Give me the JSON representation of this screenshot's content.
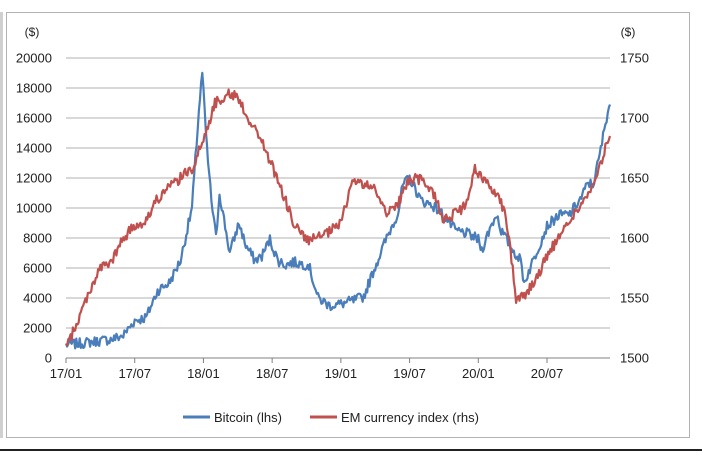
{
  "chart_data": {
    "type": "line",
    "title": "",
    "x_tick_labels": [
      "17/01",
      "17/07",
      "18/01",
      "18/07",
      "19/01",
      "19/07",
      "20/01",
      "20/07"
    ],
    "y_left": {
      "unit": "($)",
      "ylim": [
        0,
        20000
      ],
      "ticks": [
        0,
        2000,
        4000,
        6000,
        8000,
        10000,
        12000,
        14000,
        16000,
        18000,
        20000
      ]
    },
    "y_right": {
      "unit": "($)",
      "ylim": [
        1500,
        1750
      ],
      "ticks": [
        1500,
        1550,
        1600,
        1650,
        1700,
        1750
      ]
    },
    "grid": "horizontal",
    "legend_position": "bottom",
    "x_range_months": [
      0,
      47.5
    ],
    "series": [
      {
        "name": "Bitcoin (lhs)",
        "axis": "left",
        "color": "#4a7ebb",
        "points": [
          [
            0,
            900
          ],
          [
            1,
            950
          ],
          [
            2,
            1050
          ],
          [
            3,
            1150
          ],
          [
            4,
            1250
          ],
          [
            5,
            1500
          ],
          [
            6,
            2500
          ],
          [
            7,
            2700
          ],
          [
            8,
            4500
          ],
          [
            9,
            5000
          ],
          [
            10,
            6500
          ],
          [
            11,
            10000
          ],
          [
            11.6,
            16500
          ],
          [
            11.9,
            19000
          ],
          [
            12.3,
            14000
          ],
          [
            12.7,
            10500
          ],
          [
            13.1,
            8000
          ],
          [
            13.4,
            11000
          ],
          [
            14.3,
            7000
          ],
          [
            15.1,
            9000
          ],
          [
            15.7,
            7500
          ],
          [
            16.5,
            6500
          ],
          [
            17.1,
            6800
          ],
          [
            17.8,
            7900
          ],
          [
            18.5,
            6500
          ],
          [
            19.2,
            6200
          ],
          [
            19.8,
            6400
          ],
          [
            20.4,
            6300
          ],
          [
            21.2,
            6200
          ],
          [
            22,
            4000
          ],
          [
            23,
            3500
          ],
          [
            24,
            3600
          ],
          [
            25,
            3800
          ],
          [
            26,
            4100
          ],
          [
            27,
            6100
          ],
          [
            28,
            8000
          ],
          [
            29,
            9700
          ],
          [
            29.4,
            11500
          ],
          [
            30,
            12000
          ],
          [
            31,
            10500
          ],
          [
            32,
            10200
          ],
          [
            33,
            9500
          ],
          [
            34,
            8500
          ],
          [
            35,
            8300
          ],
          [
            36,
            7900
          ],
          [
            36.3,
            7200
          ],
          [
            37,
            8600
          ],
          [
            37.6,
            9600
          ],
          [
            38,
            8500
          ],
          [
            39,
            7200
          ],
          [
            39.7,
            6500
          ],
          [
            40,
            5000
          ],
          [
            41,
            6900
          ],
          [
            42,
            8800
          ],
          [
            43,
            9500
          ],
          [
            44,
            9600
          ],
          [
            45,
            10700
          ],
          [
            45.6,
            11700
          ],
          [
            46,
            11500
          ],
          [
            46.6,
            13500
          ],
          [
            47.3,
            16500
          ],
          [
            47.5,
            16900
          ]
        ]
      },
      {
        "name": "EM currency index (rhs)",
        "axis": "right",
        "color": "#c0504d",
        "points": [
          [
            0,
            1508
          ],
          [
            1,
            1530
          ],
          [
            2,
            1555
          ],
          [
            3,
            1575
          ],
          [
            4,
            1580
          ],
          [
            5,
            1600
          ],
          [
            6,
            1610
          ],
          [
            7,
            1615
          ],
          [
            8,
            1633
          ],
          [
            9,
            1642
          ],
          [
            10,
            1650
          ],
          [
            11,
            1658
          ],
          [
            11.6,
            1672
          ],
          [
            12,
            1682
          ],
          [
            13,
            1712
          ],
          [
            14,
            1720
          ],
          [
            15,
            1718
          ],
          [
            16,
            1698
          ],
          [
            17,
            1683
          ],
          [
            18,
            1660
          ],
          [
            19,
            1635
          ],
          [
            20,
            1610
          ],
          [
            21,
            1598
          ],
          [
            22,
            1600
          ],
          [
            23,
            1605
          ],
          [
            24,
            1612
          ],
          [
            25,
            1648
          ],
          [
            26,
            1645
          ],
          [
            27,
            1640
          ],
          [
            28,
            1622
          ],
          [
            29,
            1628
          ],
          [
            30,
            1650
          ],
          [
            31,
            1648
          ],
          [
            32,
            1640
          ],
          [
            33,
            1615
          ],
          [
            34,
            1620
          ],
          [
            35,
            1628
          ],
          [
            35.7,
            1658
          ],
          [
            36,
            1652
          ],
          [
            37,
            1645
          ],
          [
            37.9,
            1632
          ],
          [
            38.4,
            1620
          ],
          [
            38.8,
            1590
          ],
          [
            39.3,
            1550
          ],
          [
            40,
            1552
          ],
          [
            41,
            1565
          ],
          [
            42,
            1585
          ],
          [
            43,
            1600
          ],
          [
            44,
            1615
          ],
          [
            45,
            1628
          ],
          [
            46,
            1642
          ],
          [
            46.6,
            1658
          ],
          [
            47.2,
            1680
          ],
          [
            47.5,
            1685
          ]
        ]
      }
    ]
  },
  "legend": {
    "bitcoin": "Bitcoin (lhs)",
    "em": "EM currency index (rhs)"
  }
}
